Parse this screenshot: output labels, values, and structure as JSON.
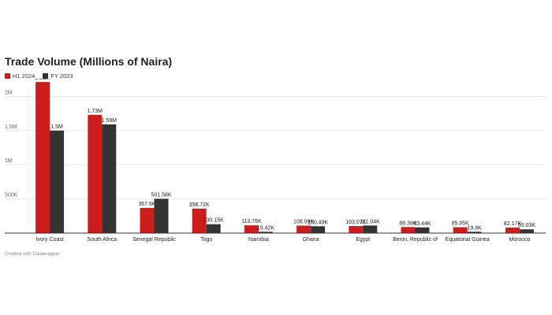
{
  "page": {
    "title": "Trade Volume (Millions of Naira)",
    "credit": "Created with Datawrapper"
  },
  "chart_data": {
    "type": "bar",
    "title": "Trade Volume (Millions of Naira)",
    "xlabel": "",
    "ylabel": "",
    "ylim": [
      0,
      2200000
    ],
    "yticks": [
      0,
      500000,
      1000000,
      1500000,
      2000000
    ],
    "ytick_labels": [
      "",
      "500K",
      "1M",
      "1.5M",
      "2M"
    ],
    "grid": true,
    "legend_position": "top-left",
    "categories": [
      "Ivory Coast",
      "South Africa",
      "Senegal Republic",
      "Togo",
      "Namibia",
      "Ghana",
      "Egypt",
      "Benin, Republic of",
      "Equatorial Guinea",
      "Morocco"
    ],
    "series": [
      {
        "name": "H1 2024",
        "color": "#cc1d1d",
        "values": [
          2210000,
          1730000,
          367600,
          358720,
          113760,
          108990,
          103070,
          88390,
          85950,
          82170
        ],
        "labels": [
          "2.21M",
          "1.73M",
          "367.6K",
          "358.72K",
          "113.76K",
          "108.99K",
          "103.07K",
          "88.39K",
          "85.95K",
          "82.17K"
        ]
      },
      {
        "name": "FY 2023",
        "color": "#333333",
        "values": [
          1500000,
          1590000,
          501580,
          130150,
          19420,
          100490,
          111040,
          83440,
          19800,
          55030
        ],
        "labels": [
          "1.5M",
          "1.59M",
          "501.58K",
          "130.15K",
          "19.42K",
          "100.49K",
          "111.04K",
          "83.44K",
          "19.8K",
          "55.03K"
        ]
      }
    ]
  }
}
